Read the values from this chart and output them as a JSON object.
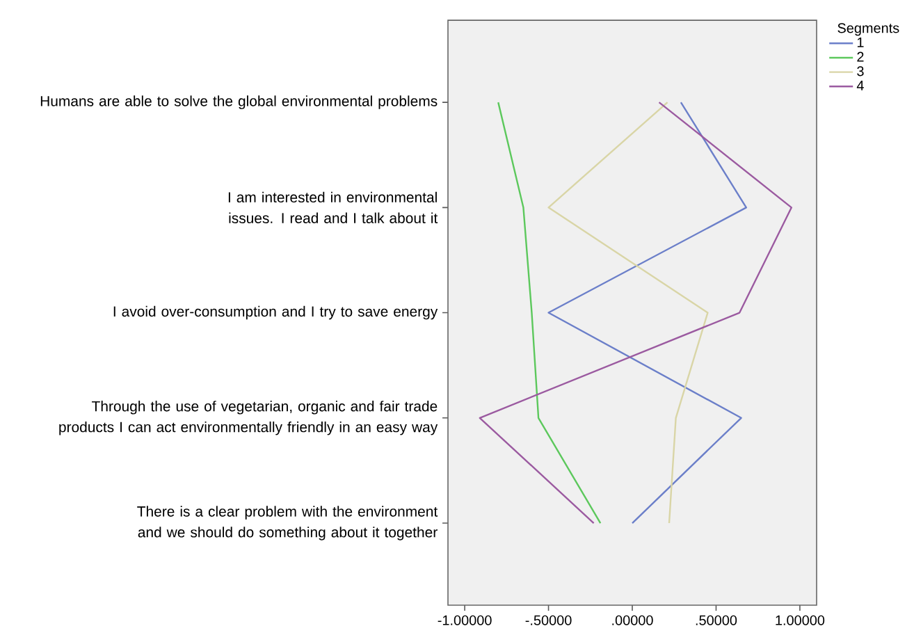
{
  "chart_data": {
    "type": "line",
    "orientation": "horizontal",
    "legend_title": "Segments",
    "legend": "top right",
    "categories": [
      "Humans are able to solve the global environmental problems",
      "I am interested in environmental issues. I read and I talk about it",
      "I avoid over-consumption and I try to save energy",
      "Through the use of vegetarian, organic and fair trade products I can act environmentally friendly in an easy way",
      "There is a clear problem with the environment and we should do something about it together"
    ],
    "xlim": [
      -1.1,
      1.1
    ],
    "xticks": [
      {
        "value": -1,
        "label": "-1.00000"
      },
      {
        "value": -0.5,
        "label": "-.50000"
      },
      {
        "value": 0,
        "label": ".00000"
      },
      {
        "value": 0.5,
        "label": ".50000"
      },
      {
        "value": 1,
        "label": "1.00000"
      }
    ],
    "series": [
      {
        "name": "1",
        "color": "#6b7fc9",
        "values": [
          0.29,
          0.68,
          -0.5,
          0.65,
          0.0
        ]
      },
      {
        "name": "2",
        "color": "#5cc85c",
        "values": [
          -0.8,
          -0.65,
          -0.6,
          -0.56,
          -0.19
        ]
      },
      {
        "name": "3",
        "color": "#d9d5a6",
        "values": [
          0.21,
          -0.5,
          0.45,
          0.26,
          0.22
        ]
      },
      {
        "name": "4",
        "color": "#9b5aa0",
        "values": [
          0.16,
          0.95,
          0.64,
          -0.91,
          -0.23
        ]
      }
    ]
  }
}
